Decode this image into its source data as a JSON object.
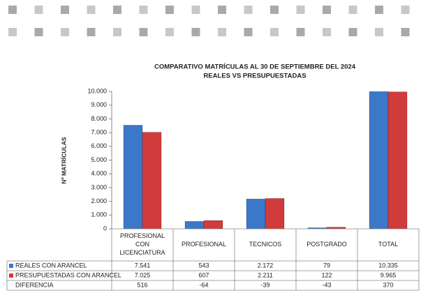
{
  "chart_data": {
    "type": "bar",
    "title": "COMPARATIVO MATRÍCULAS AL 30 DE SEPTIEMBRE DEL 2024",
    "subtitle": "REALES VS PRESUPUESTADAS",
    "y_label": "Nº MATRÍCULAS",
    "categories": [
      "PROFESIONAL CON LICENCIATURA",
      "PROFESIONAL",
      "TECNICOS",
      "POSTGRADO",
      "TOTAL"
    ],
    "series": [
      {
        "name": "REALES CON ARANCEL",
        "color": "#3b78c9",
        "values": [
          7541,
          543,
          2172,
          79,
          10335
        ],
        "value_labels": [
          "7.541",
          "543",
          "2.172",
          "79",
          "10.335"
        ]
      },
      {
        "name": "PRESUPUESTADAS CON ARANCEL",
        "color": "#d13b3b",
        "values": [
          7025,
          607,
          2211,
          122,
          9965
        ],
        "value_labels": [
          "7.025",
          "607",
          "2.211",
          "122",
          "9.965"
        ]
      }
    ],
    "difference": {
      "name": "DIFERENCIA",
      "values": [
        516,
        -64,
        -39,
        -43,
        370
      ]
    },
    "ylim": [
      0,
      10000
    ],
    "yticks": [
      0,
      {
        "value": 1000,
        "label": "1.000"
      },
      {
        "value": 2000,
        "label": "2.000"
      },
      {
        "value": 3000,
        "label": "3.000"
      },
      {
        "value": 4000,
        "label": "4.000"
      },
      {
        "value": 5000,
        "label": "5.000"
      },
      {
        "value": 6000,
        "label": "6.000"
      },
      {
        "value": 7000,
        "label": "7.000"
      },
      {
        "value": 8000,
        "label": "8.000"
      },
      {
        "value": 9000,
        "label": "9.000"
      },
      {
        "value": 10000,
        "label": "10.000"
      }
    ],
    "grid": false
  }
}
